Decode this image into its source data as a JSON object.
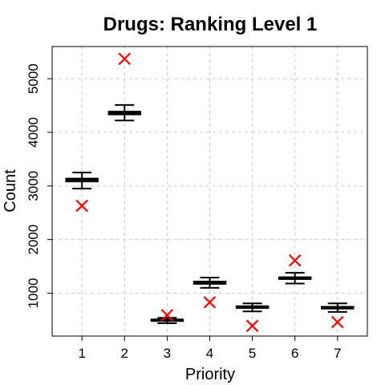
{
  "chart_data": {
    "type": "box",
    "title": "Drugs: Ranking Level 1",
    "xlabel": "Priority",
    "ylabel": "Count",
    "categories": [
      "1",
      "2",
      "3",
      "4",
      "5",
      "6",
      "7"
    ],
    "yticks": [
      1000,
      2000,
      3000,
      4000,
      5000
    ],
    "ylim": [
      200,
      5600
    ],
    "xlim": [
      0.3,
      7.7
    ],
    "grid": true,
    "boxes": [
      {
        "category": "1",
        "whisker_low": 2950,
        "q1": 3080,
        "median": 3120,
        "q3": 3140,
        "whisker_high": 3250
      },
      {
        "category": "2",
        "whisker_low": 4220,
        "q1": 4330,
        "median": 4360,
        "q3": 4390,
        "whisker_high": 4510
      },
      {
        "category": "3",
        "whisker_low": 440,
        "q1": 480,
        "median": 495,
        "q3": 510,
        "whisker_high": 540
      },
      {
        "category": "4",
        "whisker_low": 1100,
        "q1": 1170,
        "median": 1195,
        "q3": 1220,
        "whisker_high": 1290
      },
      {
        "category": "5",
        "whisker_low": 660,
        "q1": 720,
        "median": 740,
        "q3": 760,
        "whisker_high": 810
      },
      {
        "category": "6",
        "whisker_low": 1180,
        "q1": 1260,
        "median": 1280,
        "q3": 1300,
        "whisker_high": 1380
      },
      {
        "category": "7",
        "whisker_low": 650,
        "q1": 710,
        "median": 730,
        "q3": 750,
        "whisker_high": 810
      }
    ],
    "markers": {
      "symbol": "x",
      "color": "#ff0000",
      "points": [
        {
          "category": "1",
          "value": 2630
        },
        {
          "category": "2",
          "value": 5370
        },
        {
          "category": "3",
          "value": 590
        },
        {
          "category": "4",
          "value": 830
        },
        {
          "category": "5",
          "value": 390
        },
        {
          "category": "6",
          "value": 1610
        },
        {
          "category": "7",
          "value": 460
        }
      ]
    },
    "colors": {
      "box": "#000000",
      "marker": "#ff0000",
      "grid": "#c8c8c8"
    }
  }
}
